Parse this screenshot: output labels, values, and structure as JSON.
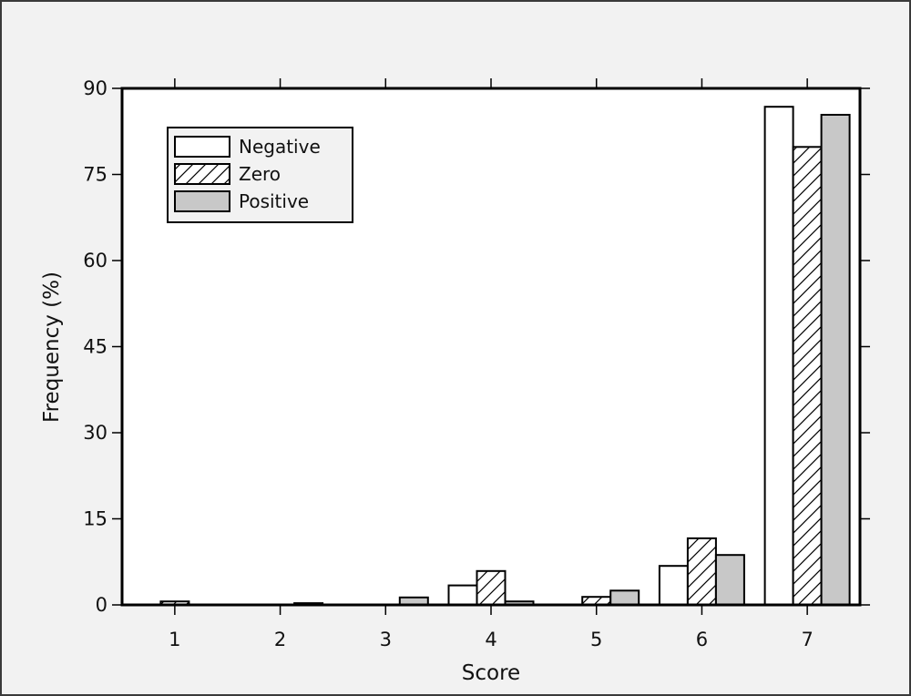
{
  "chart_data": {
    "type": "bar",
    "title": "",
    "xlabel": "Score",
    "ylabel": "Frequency (%)",
    "categories": [
      "1",
      "2",
      "3",
      "4",
      "5",
      "6",
      "7"
    ],
    "yticks": [
      "0",
      "15",
      "30",
      "45",
      "60",
      "75",
      "90"
    ],
    "ylim": [
      0,
      90
    ],
    "legend_position": "top-left",
    "grid": false,
    "series": [
      {
        "name": "Negative",
        "fill": "#ffffff",
        "pattern": "none",
        "values": [
          0.0,
          0.0,
          0.0,
          3.4,
          0.0,
          6.8,
          86.8
        ]
      },
      {
        "name": "Zero",
        "fill": "#ffffff",
        "pattern": "diagonal-hatch",
        "values": [
          0.6,
          0.0,
          0.0,
          5.9,
          1.4,
          11.6,
          79.8
        ]
      },
      {
        "name": "Positive",
        "fill": "#c8c8c8",
        "pattern": "none",
        "values": [
          0.0,
          0.3,
          1.3,
          0.6,
          2.5,
          8.7,
          85.4
        ]
      }
    ],
    "colors": {
      "stroke": "#000000",
      "plot_background": "#ffffff",
      "frame_background": "#f2f2f2"
    }
  }
}
